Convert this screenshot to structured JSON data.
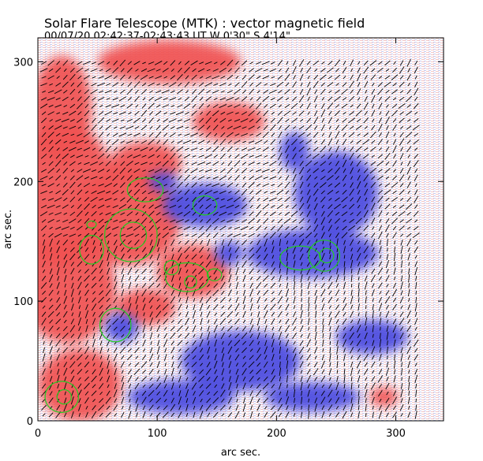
{
  "header": {
    "title": "Solar Flare Telescope (MTK) : vector magnetic field",
    "subtitle": "00/07/20   02:42:37-02:43:43 UT      W 0'30\"   S 4'14\""
  },
  "chart_data": {
    "type": "heatmap",
    "title": "Solar Flare Telescope (MTK) : vector magnetic field",
    "subtitle": "00/07/20   02:42:37-02:43:43 UT      W 0'30\"   S 4'14\"",
    "xlabel": "arc sec.",
    "ylabel": "arc sec.",
    "xlim": [
      0,
      340
    ],
    "ylim": [
      0,
      320
    ],
    "xticks": [
      0,
      100,
      200,
      300
    ],
    "yticks": [
      0,
      100,
      200,
      300
    ],
    "colors": {
      "positive": "#f05050",
      "negative": "#4a4ae0",
      "contour": "#22cc22",
      "vector": "#000000",
      "frame": "#000000"
    },
    "series": [
      {
        "name": "positive polarity (red)",
        "regions": [
          {
            "cx": 20,
            "cy": 190,
            "rx": 45,
            "ry": 60
          },
          {
            "cx": 75,
            "cy": 170,
            "rx": 45,
            "ry": 40
          },
          {
            "cx": 25,
            "cy": 110,
            "rx": 40,
            "ry": 45
          },
          {
            "cx": 130,
            "cy": 125,
            "rx": 30,
            "ry": 22
          },
          {
            "cx": 35,
            "cy": 30,
            "rx": 35,
            "ry": 30
          },
          {
            "cx": 110,
            "cy": 300,
            "rx": 60,
            "ry": 18
          },
          {
            "cx": 20,
            "cy": 260,
            "rx": 25,
            "ry": 45
          },
          {
            "cx": 90,
            "cy": 215,
            "rx": 30,
            "ry": 18
          },
          {
            "cx": 160,
            "cy": 250,
            "rx": 30,
            "ry": 16
          },
          {
            "cx": 290,
            "cy": 20,
            "rx": 12,
            "ry": 8
          },
          {
            "cx": 90,
            "cy": 95,
            "rx": 25,
            "ry": 15
          }
        ]
      },
      {
        "name": "negative polarity (blue)",
        "regions": [
          {
            "cx": 140,
            "cy": 180,
            "rx": 35,
            "ry": 18
          },
          {
            "cx": 230,
            "cy": 140,
            "rx": 55,
            "ry": 20
          },
          {
            "cx": 250,
            "cy": 190,
            "rx": 35,
            "ry": 35
          },
          {
            "cx": 70,
            "cy": 78,
            "rx": 14,
            "ry": 12
          },
          {
            "cx": 170,
            "cy": 50,
            "rx": 50,
            "ry": 25
          },
          {
            "cx": 120,
            "cy": 20,
            "rx": 45,
            "ry": 14
          },
          {
            "cx": 230,
            "cy": 20,
            "rx": 40,
            "ry": 12
          },
          {
            "cx": 105,
            "cy": 200,
            "rx": 12,
            "ry": 8
          },
          {
            "cx": 160,
            "cy": 140,
            "rx": 12,
            "ry": 10
          },
          {
            "cx": 215,
            "cy": 225,
            "rx": 12,
            "ry": 16
          },
          {
            "cx": 280,
            "cy": 70,
            "rx": 30,
            "ry": 14
          }
        ]
      },
      {
        "name": "contours (green)",
        "regions": [
          {
            "cx": 78,
            "cy": 155,
            "rx": 22,
            "ry": 22
          },
          {
            "cx": 80,
            "cy": 155,
            "rx": 11,
            "ry": 11
          },
          {
            "cx": 45,
            "cy": 143,
            "rx": 10,
            "ry": 12
          },
          {
            "cx": 90,
            "cy": 193,
            "rx": 15,
            "ry": 10
          },
          {
            "cx": 140,
            "cy": 180,
            "rx": 10,
            "ry": 8
          },
          {
            "cx": 125,
            "cy": 120,
            "rx": 18,
            "ry": 12
          },
          {
            "cx": 112,
            "cy": 128,
            "rx": 6,
            "ry": 6
          },
          {
            "cx": 128,
            "cy": 116,
            "rx": 5,
            "ry": 5
          },
          {
            "cx": 148,
            "cy": 122,
            "rx": 6,
            "ry": 5
          },
          {
            "cx": 220,
            "cy": 136,
            "rx": 17,
            "ry": 10
          },
          {
            "cx": 240,
            "cy": 138,
            "rx": 13,
            "ry": 13
          },
          {
            "cx": 242,
            "cy": 138,
            "rx": 6,
            "ry": 6
          },
          {
            "cx": 65,
            "cy": 80,
            "rx": 13,
            "ry": 14
          },
          {
            "cx": 20,
            "cy": 20,
            "rx": 14,
            "ry": 13
          },
          {
            "cx": 22,
            "cy": 20,
            "rx": 6,
            "ry": 6
          },
          {
            "cx": 45,
            "cy": 164,
            "rx": 4,
            "ry": 3
          }
        ]
      }
    ],
    "vector_field": {
      "x_range": [
        5,
        320
      ],
      "y_range": [
        5,
        300
      ],
      "step": 6,
      "rules": [
        {
          "x_range": [
            0,
            200
          ],
          "y_range": [
            150,
            320
          ],
          "angle_deg": -35
        },
        {
          "x_range": [
            200,
            320
          ],
          "y_range": [
            150,
            320
          ],
          "angle_deg": -50
        },
        {
          "x_range": [
            0,
            200
          ],
          "y_range": [
            0,
            150
          ],
          "angle_deg": -60
        },
        {
          "x_range": [
            200,
            320
          ],
          "y_range": [
            0,
            150
          ],
          "angle_deg": -70
        }
      ]
    }
  }
}
